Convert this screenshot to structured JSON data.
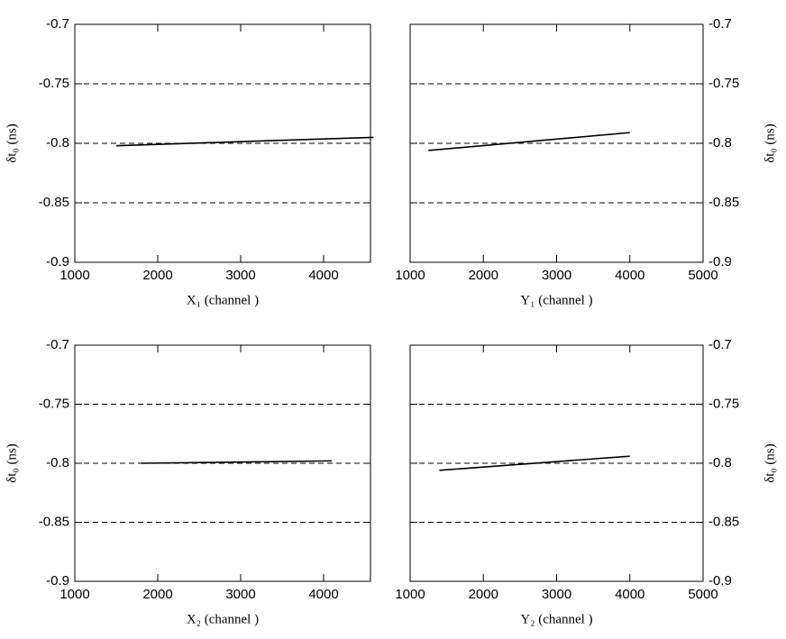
{
  "chart_data": [
    {
      "type": "line",
      "x": [
        1500,
        4600
      ],
      "series": [
        {
          "color": "#000000",
          "values": [
            -0.802,
            -0.795
          ]
        }
      ],
      "xlim": [
        1000,
        4565
      ],
      "xticks": [
        1000,
        2000,
        3000,
        4000
      ],
      "ylim": [
        -0.9,
        -0.7
      ],
      "yticks": [
        -0.9,
        -0.85,
        -0.8,
        -0.75,
        -0.7
      ],
      "xlabel": "X₁ (channel )",
      "ylabel": "δt₀ (ns)",
      "yaxis_side": "left",
      "grid": true
    },
    {
      "type": "line",
      "x": [
        1250,
        4000
      ],
      "series": [
        {
          "color": "#000000",
          "values": [
            -0.806,
            -0.791
          ]
        }
      ],
      "xlim": [
        1000,
        5000
      ],
      "xticks": [
        1000,
        2000,
        3000,
        4000,
        5000
      ],
      "ylim": [
        -0.9,
        -0.7
      ],
      "yticks": [
        -0.9,
        -0.85,
        -0.8,
        -0.75,
        -0.7
      ],
      "xlabel": "Y₁ (channel )",
      "ylabel": "δt₀ (ns)",
      "yaxis_side": "right",
      "grid": true
    },
    {
      "type": "line",
      "x": [
        1800,
        4100
      ],
      "series": [
        {
          "color": "#000000",
          "values": [
            -0.8,
            -0.798
          ]
        }
      ],
      "xlim": [
        1000,
        4565
      ],
      "xticks": [
        1000,
        2000,
        3000,
        4000
      ],
      "ylim": [
        -0.9,
        -0.7
      ],
      "yticks": [
        -0.9,
        -0.85,
        -0.8,
        -0.75,
        -0.7
      ],
      "xlabel": "X₂ (channel )",
      "ylabel": "δt₀ (ns)",
      "yaxis_side": "left",
      "grid": true
    },
    {
      "type": "line",
      "x": [
        1400,
        4000
      ],
      "series": [
        {
          "color": "#000000",
          "values": [
            -0.806,
            -0.794
          ]
        }
      ],
      "xlim": [
        1000,
        5000
      ],
      "xticks": [
        1000,
        2000,
        3000,
        4000,
        5000
      ],
      "ylim": [
        -0.9,
        -0.7
      ],
      "yticks": [
        -0.9,
        -0.85,
        -0.8,
        -0.75,
        -0.7
      ],
      "xlabel": "Y₂ (channel )",
      "ylabel": "δt₀ (ns)",
      "yaxis_side": "right",
      "grid": true
    }
  ]
}
